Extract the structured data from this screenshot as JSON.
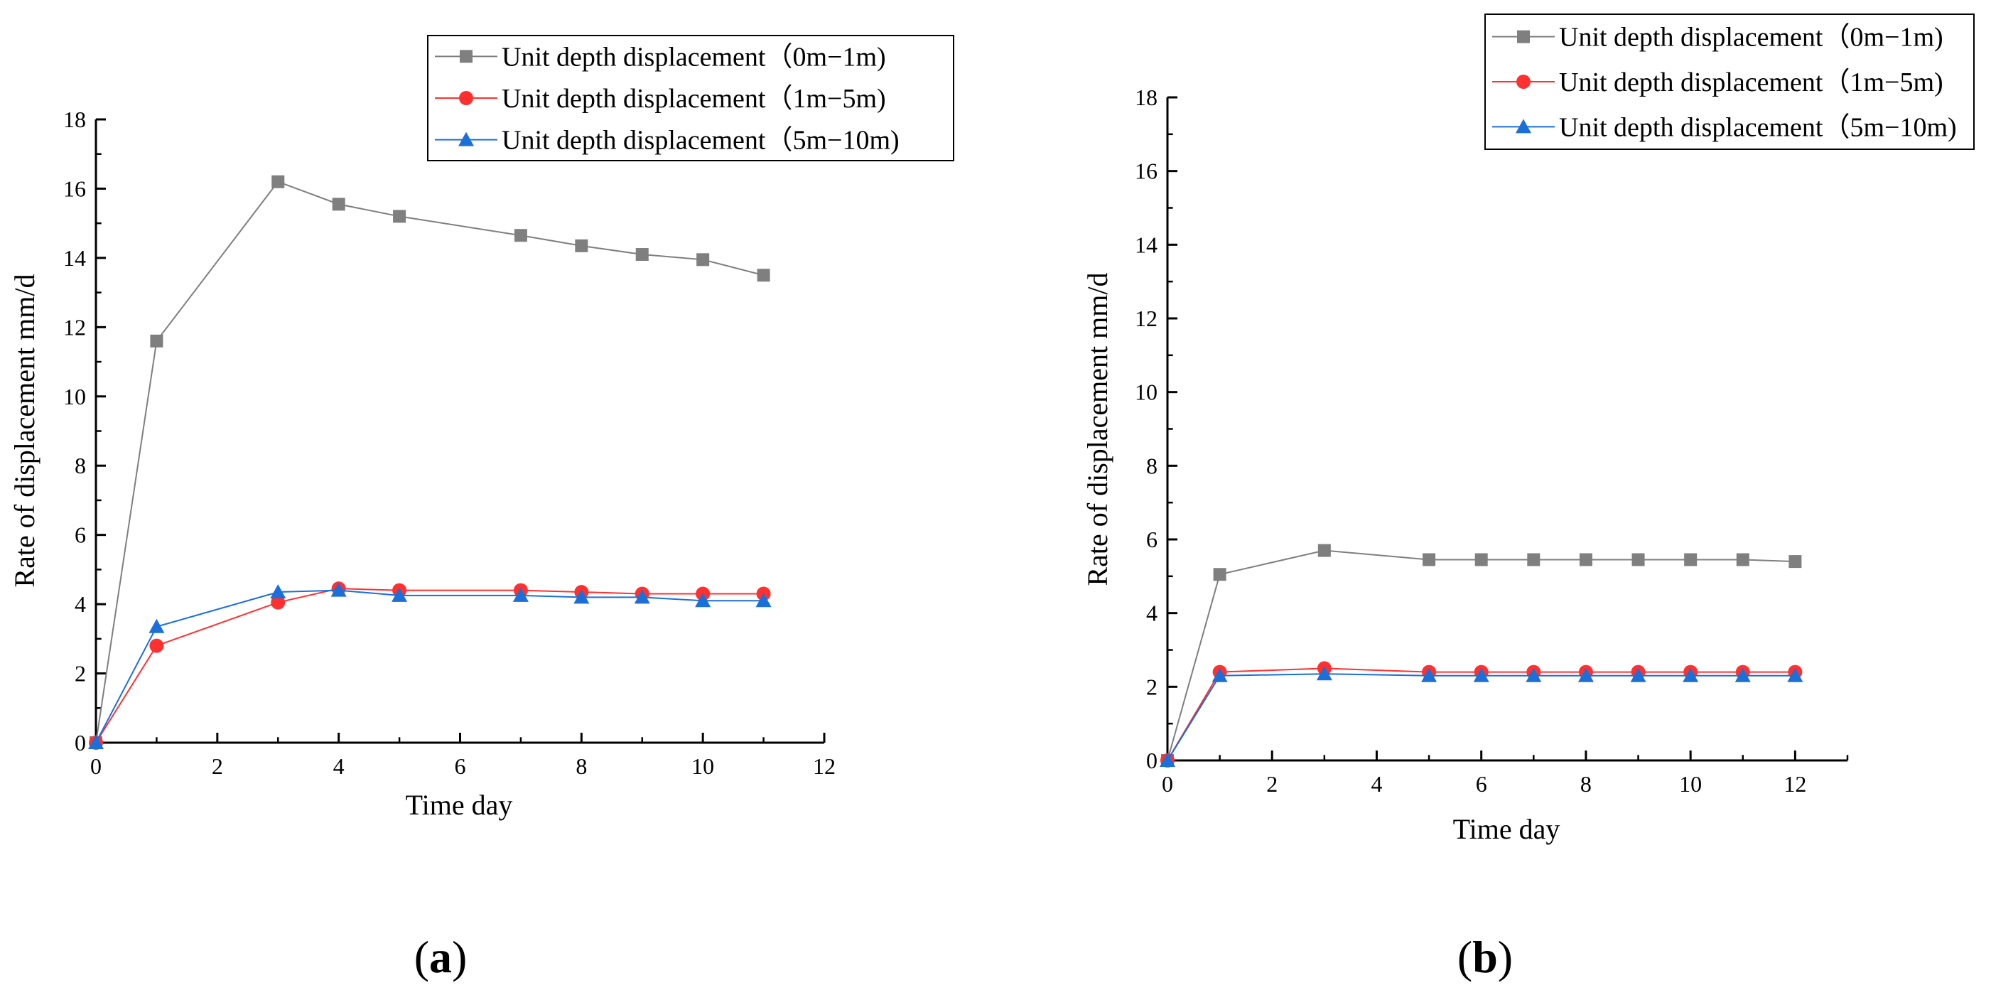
{
  "chart_data": [
    {
      "type": "line",
      "panel_label": "a",
      "xlabel": "Time day",
      "ylabel": "Rate of displacement mm/d",
      "xlim": [
        0,
        12
      ],
      "ylim": [
        0,
        18
      ],
      "xticks": [
        "0",
        "2",
        "4",
        "6",
        "8",
        "10",
        "12"
      ],
      "yticks": [
        "0",
        "2",
        "4",
        "6",
        "8",
        "10",
        "12",
        "14",
        "16",
        "18"
      ],
      "legend_position": "top-right",
      "series": [
        {
          "name": "Unit depth displacement（0m−1m)",
          "color": "#7f7f7f",
          "marker": "square",
          "x": [
            0,
            1,
            3,
            4,
            5,
            7,
            8,
            9,
            10,
            11
          ],
          "y": [
            0,
            11.6,
            16.2,
            15.55,
            15.2,
            14.65,
            14.35,
            14.1,
            13.95,
            13.5
          ]
        },
        {
          "name": "Unit depth displacement（1m−5m)",
          "color": "#ff3030",
          "marker": "circle",
          "x": [
            0,
            1,
            3,
            4,
            5,
            7,
            8,
            9,
            10,
            11
          ],
          "y": [
            0,
            2.8,
            4.05,
            4.45,
            4.4,
            4.4,
            4.35,
            4.3,
            4.3,
            4.3
          ]
        },
        {
          "name": "Unit depth displacement（5m−10m)",
          "color": "#1a6fd9",
          "marker": "triangle",
          "x": [
            0,
            1,
            3,
            4,
            5,
            7,
            8,
            9,
            10,
            11
          ],
          "y": [
            0,
            3.35,
            4.35,
            4.4,
            4.25,
            4.25,
            4.2,
            4.2,
            4.1,
            4.1
          ]
        }
      ]
    },
    {
      "type": "line",
      "panel_label": "b",
      "xlabel": "Time day",
      "ylabel": "Rate of displacement mm/d",
      "xlim": [
        0,
        13
      ],
      "ylim": [
        0,
        18
      ],
      "xticks": [
        "0",
        "2",
        "4",
        "6",
        "8",
        "10",
        "12"
      ],
      "yticks": [
        "0",
        "2",
        "4",
        "6",
        "8",
        "10",
        "12",
        "14",
        "16",
        "18"
      ],
      "legend_position": "top-right",
      "series": [
        {
          "name": "Unit depth displacement（0m−1m)",
          "color": "#7f7f7f",
          "marker": "square",
          "x": [
            0,
            1,
            3,
            5,
            6,
            7,
            8,
            9,
            10,
            11,
            12
          ],
          "y": [
            0,
            5.05,
            5.7,
            5.45,
            5.45,
            5.45,
            5.45,
            5.45,
            5.45,
            5.45,
            5.4
          ]
        },
        {
          "name": "Unit depth displacement（1m−5m)",
          "color": "#ff3030",
          "marker": "circle",
          "x": [
            0,
            1,
            3,
            5,
            6,
            7,
            8,
            9,
            10,
            11,
            12
          ],
          "y": [
            0,
            2.4,
            2.5,
            2.4,
            2.4,
            2.4,
            2.4,
            2.4,
            2.4,
            2.4,
            2.4
          ]
        },
        {
          "name": "Unit depth displacement（5m−10m)",
          "color": "#1a6fd9",
          "marker": "triangle",
          "x": [
            0,
            1,
            3,
            5,
            6,
            7,
            8,
            9,
            10,
            11,
            12
          ],
          "y": [
            0,
            2.3,
            2.35,
            2.3,
            2.3,
            2.3,
            2.3,
            2.3,
            2.3,
            2.3,
            2.3
          ]
        }
      ]
    }
  ]
}
